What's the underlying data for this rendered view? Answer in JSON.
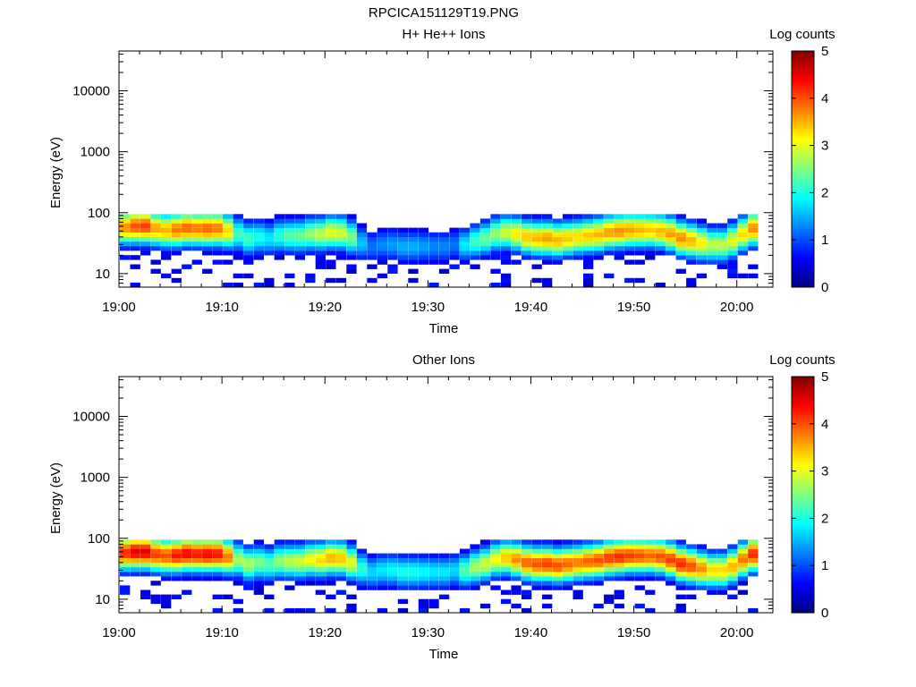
{
  "figure_title": "RPCICA151129T19.PNG",
  "colormap": [
    "#00007f",
    "#0000ff",
    "#0080ff",
    "#00ffff",
    "#80ff80",
    "#ffff00",
    "#ff8000",
    "#ff0000",
    "#7f0000"
  ],
  "chart_data": [
    {
      "type": "heatmap",
      "title": "H+ He++ Ions",
      "xlabel": "Time",
      "ylabel": "Energy (eV)",
      "x_ticks": [
        "19:00",
        "19:10",
        "19:20",
        "19:30",
        "19:40",
        "19:50",
        "20:00"
      ],
      "y_ticks": [
        "10",
        "100",
        "1000",
        "10000"
      ],
      "y_scale": "log",
      "ylim_eV": [
        6,
        45000
      ],
      "xlim_minutes": [
        0,
        63.5
      ],
      "colorbar": {
        "label": "Log counts",
        "ticks": [
          "0",
          "1",
          "2",
          "3",
          "4",
          "5"
        ],
        "range": [
          0,
          5
        ]
      },
      "x_minutes": [
        1,
        2,
        3,
        4,
        5,
        6,
        7,
        8,
        9,
        10,
        11,
        12,
        13,
        14,
        15,
        16,
        17,
        18,
        19,
        20,
        21,
        22,
        23,
        24,
        25,
        26,
        27,
        28,
        29,
        30,
        31,
        32,
        33,
        34,
        35,
        36,
        37,
        38,
        39,
        40,
        41,
        42,
        43,
        44,
        45,
        46,
        47,
        48,
        49,
        50,
        51,
        52,
        53,
        54,
        55,
        56,
        57,
        58,
        59,
        60,
        61,
        62
      ],
      "peak_energy_eV": [
        58,
        60,
        60,
        55,
        52,
        53,
        56,
        55,
        55,
        55,
        50,
        45,
        38,
        40,
        38,
        42,
        42,
        42,
        45,
        45,
        48,
        47,
        40,
        32,
        28,
        30,
        30,
        28,
        28,
        28,
        28,
        28,
        30,
        30,
        34,
        38,
        45,
        48,
        45,
        40,
        38,
        38,
        36,
        38,
        40,
        42,
        44,
        48,
        50,
        52,
        52,
        52,
        50,
        45,
        38,
        35,
        32,
        30,
        30,
        35,
        45,
        55
      ],
      "peak_log_counts": [
        3.7,
        4.0,
        4.1,
        3.6,
        3.5,
        3.8,
        3.9,
        3.8,
        3.9,
        3.8,
        3.3,
        2.2,
        2.2,
        2.0,
        1.8,
        2.1,
        2.3,
        2.4,
        2.6,
        2.8,
        3.0,
        2.9,
        2.5,
        1.6,
        1.2,
        1.3,
        1.4,
        1.5,
        1.5,
        1.4,
        1.3,
        1.3,
        1.2,
        1.8,
        2.2,
        2.4,
        2.6,
        2.9,
        3.2,
        3.4,
        3.5,
        3.6,
        3.5,
        3.4,
        3.3,
        3.4,
        3.5,
        3.6,
        3.7,
        3.6,
        3.5,
        3.4,
        3.5,
        3.6,
        3.7,
        3.5,
        3.2,
        2.8,
        2.8,
        3.0,
        3.3,
        3.7
      ]
    },
    {
      "type": "heatmap",
      "title": "Other Ions",
      "xlabel": "Time",
      "ylabel": "Energy (eV)",
      "x_ticks": [
        "19:00",
        "19:10",
        "19:20",
        "19:30",
        "19:40",
        "19:50",
        "20:00"
      ],
      "y_ticks": [
        "10",
        "100",
        "1000",
        "10000"
      ],
      "y_scale": "log",
      "ylim_eV": [
        6,
        45000
      ],
      "xlim_minutes": [
        0,
        63.5
      ],
      "colorbar": {
        "label": "Log counts",
        "ticks": [
          "0",
          "1",
          "2",
          "3",
          "4",
          "5"
        ],
        "range": [
          0,
          5
        ]
      },
      "x_minutes": [
        1,
        2,
        3,
        4,
        5,
        6,
        7,
        8,
        9,
        10,
        11,
        12,
        13,
        14,
        15,
        16,
        17,
        18,
        19,
        20,
        21,
        22,
        23,
        24,
        25,
        26,
        27,
        28,
        29,
        30,
        31,
        32,
        33,
        34,
        35,
        36,
        37,
        38,
        39,
        40,
        41,
        42,
        43,
        44,
        45,
        46,
        47,
        48,
        49,
        50,
        51,
        52,
        53,
        54,
        55,
        56,
        57,
        58,
        59,
        60,
        61,
        62
      ],
      "peak_energy_eV": [
        58,
        60,
        60,
        55,
        52,
        53,
        56,
        55,
        55,
        55,
        50,
        45,
        38,
        40,
        38,
        42,
        42,
        42,
        45,
        45,
        48,
        47,
        40,
        32,
        28,
        30,
        30,
        28,
        28,
        28,
        28,
        28,
        30,
        30,
        34,
        38,
        45,
        48,
        45,
        40,
        38,
        38,
        36,
        38,
        40,
        42,
        44,
        48,
        50,
        52,
        52,
        52,
        50,
        45,
        38,
        35,
        32,
        30,
        30,
        35,
        45,
        55
      ],
      "peak_log_counts": [
        4.2,
        4.5,
        4.5,
        4.1,
        4.0,
        4.3,
        4.4,
        4.3,
        4.4,
        4.3,
        3.8,
        2.7,
        2.7,
        2.5,
        2.3,
        2.6,
        2.8,
        2.9,
        3.1,
        3.3,
        3.5,
        3.4,
        3.0,
        2.1,
        1.7,
        1.8,
        1.9,
        2.0,
        2.0,
        1.9,
        1.8,
        1.8,
        1.7,
        2.3,
        2.7,
        2.9,
        3.1,
        3.4,
        3.7,
        3.9,
        4.0,
        4.1,
        4.0,
        3.9,
        3.8,
        3.9,
        4.0,
        4.1,
        4.2,
        4.1,
        4.0,
        3.9,
        4.0,
        4.1,
        4.2,
        4.0,
        3.7,
        3.3,
        3.3,
        3.5,
        3.8,
        4.2
      ]
    }
  ]
}
